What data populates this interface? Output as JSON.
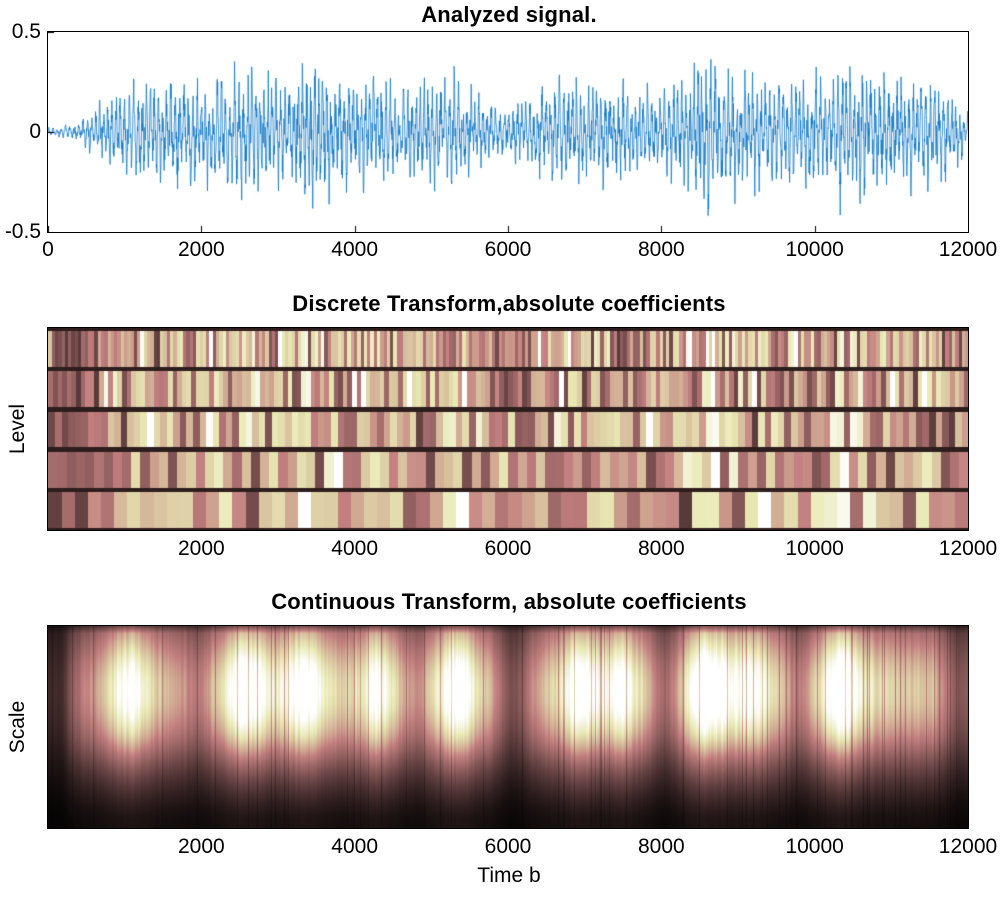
{
  "figure": {
    "background": "#ffffff",
    "text_color": "#000000"
  },
  "chart_data": [
    {
      "type": "line",
      "title": "Analyzed signal.",
      "xlabel": "",
      "ylabel": "",
      "xlim": [
        0,
        12000
      ],
      "ylim": [
        -0.5,
        0.5
      ],
      "xticks": [
        0,
        2000,
        4000,
        6000,
        8000,
        10000,
        12000
      ],
      "yticks": [
        0.5,
        0,
        -0.5
      ],
      "line_color": "#0b74c4",
      "grid": false,
      "carrier_period_samples": 55,
      "envelope_x": [
        0,
        200,
        400,
        600,
        800,
        1000,
        1200,
        1500,
        1800,
        2000,
        2300,
        2600,
        2800,
        3100,
        3500,
        3800,
        4000,
        4300,
        4700,
        5000,
        5300,
        5600,
        5900,
        6200,
        6500,
        6800,
        7100,
        7400,
        7700,
        8000,
        8300,
        8600,
        8900,
        9200,
        9500,
        9800,
        10100,
        10400,
        10600,
        10900,
        11200,
        11500,
        11800,
        12000
      ],
      "envelope_amp": [
        0.02,
        0.03,
        0.05,
        0.12,
        0.18,
        0.22,
        0.27,
        0.25,
        0.3,
        0.25,
        0.3,
        0.35,
        0.3,
        0.28,
        0.42,
        0.3,
        0.28,
        0.3,
        0.25,
        0.28,
        0.3,
        0.2,
        0.13,
        0.18,
        0.25,
        0.28,
        0.25,
        0.28,
        0.22,
        0.22,
        0.3,
        0.45,
        0.33,
        0.3,
        0.28,
        0.28,
        0.3,
        0.4,
        0.35,
        0.3,
        0.28,
        0.3,
        0.22,
        0.12
      ]
    },
    {
      "type": "heatmap",
      "title": "Discrete Transform,absolute coefficients",
      "xlabel": "",
      "ylabel": "Level",
      "xlim": [
        0,
        12000
      ],
      "xticks": [
        2000,
        4000,
        6000,
        8000,
        10000,
        12000
      ],
      "levels": 5,
      "blocks_per_level": [
        280,
        200,
        140,
        100,
        70
      ],
      "colormap": "pink",
      "legend": "none"
    },
    {
      "type": "heatmap",
      "title": "Continuous Transform, absolute coefficients",
      "xlabel": "Time b",
      "ylabel": "Scale",
      "xlim": [
        0,
        12000
      ],
      "xticks": [
        2000,
        4000,
        6000,
        8000,
        10000,
        12000
      ],
      "colormap": "pink",
      "legend": "none",
      "bright_x": [
        1050,
        2600,
        3300,
        4300,
        5350,
        6950,
        7500,
        8650,
        9200,
        10350
      ],
      "bright_amp": [
        0.45,
        0.5,
        0.45,
        0.35,
        0.55,
        0.5,
        0.45,
        0.55,
        0.4,
        0.5
      ],
      "dark_x": [
        100,
        1900,
        4800,
        6100,
        8050,
        9800,
        11850
      ],
      "dark_amp": [
        0.3,
        0.25,
        0.2,
        0.3,
        0.3,
        0.25,
        0.3
      ]
    }
  ]
}
